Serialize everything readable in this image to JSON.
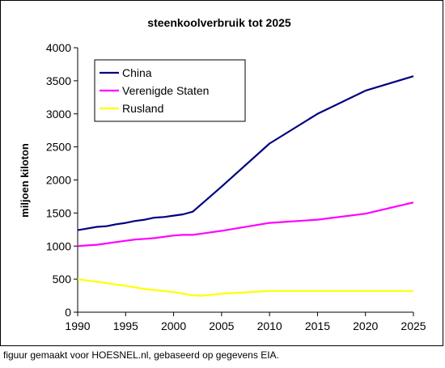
{
  "chart_data": {
    "type": "line",
    "title": "steenkoolverbruik tot 2025",
    "xlabel": "",
    "ylabel": "miljoen kiloton",
    "xlim": [
      1990,
      2025
    ],
    "ylim": [
      0,
      4000
    ],
    "x_ticks": [
      1990,
      1995,
      2000,
      2005,
      2010,
      2015,
      2020,
      2025
    ],
    "y_ticks": [
      0,
      500,
      1000,
      1500,
      2000,
      2500,
      3000,
      3500,
      4000
    ],
    "grid": false,
    "legend_position": "top-left",
    "series": [
      {
        "name": "China",
        "color": "#000080",
        "x": [
          1990,
          1991,
          1992,
          1993,
          1994,
          1995,
          1996,
          1997,
          1998,
          1999,
          2000,
          2001,
          2002,
          2005,
          2010,
          2015,
          2020,
          2025
        ],
        "y": [
          1240,
          1265,
          1290,
          1300,
          1330,
          1350,
          1380,
          1400,
          1430,
          1440,
          1460,
          1480,
          1520,
          1900,
          2550,
          3000,
          3350,
          3570
        ]
      },
      {
        "name": "Verenigde Staten",
        "color": "#ff00ff",
        "x": [
          1990,
          1991,
          1992,
          1993,
          1994,
          1995,
          1996,
          1997,
          1998,
          1999,
          2000,
          2001,
          2002,
          2005,
          2010,
          2015,
          2020,
          2025
        ],
        "y": [
          1000,
          1010,
          1020,
          1040,
          1060,
          1080,
          1100,
          1110,
          1120,
          1140,
          1160,
          1170,
          1170,
          1230,
          1350,
          1400,
          1490,
          1660
        ]
      },
      {
        "name": "Rusland",
        "color": "#ffff00",
        "x": [
          1990,
          1991,
          1992,
          1993,
          1994,
          1995,
          1996,
          1997,
          1998,
          1999,
          2000,
          2001,
          2002,
          2003,
          2005,
          2010,
          2015,
          2020,
          2025
        ],
        "y": [
          500,
          480,
          460,
          440,
          420,
          400,
          375,
          350,
          335,
          320,
          305,
          280,
          255,
          250,
          280,
          320,
          320,
          320,
          320
        ]
      }
    ]
  },
  "caption": "figuur gemaakt voor HOESNEL.nl, gebaseerd op gegevens EIA."
}
